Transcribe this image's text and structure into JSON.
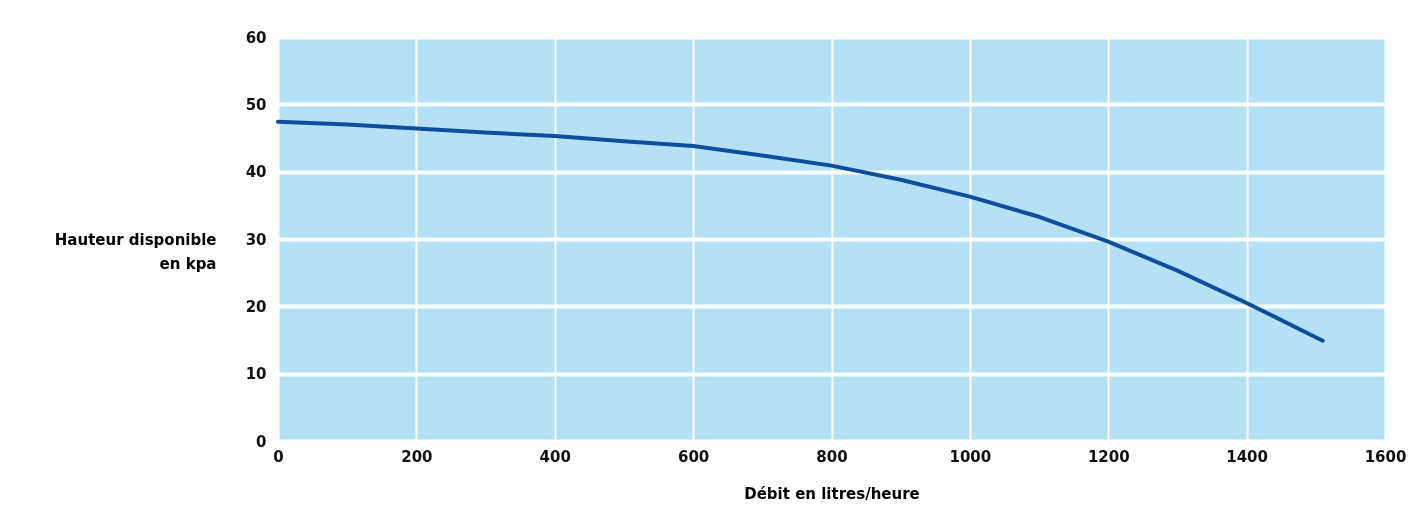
{
  "chart_data": {
    "type": "line",
    "xlabel": "Débit en litres/heure",
    "ylabel": "Hauteur disponible en kpa",
    "x": [
      0,
      100,
      200,
      300,
      400,
      500,
      600,
      700,
      800,
      900,
      1000,
      1100,
      1200,
      1300,
      1400,
      1510
    ],
    "series": [
      {
        "color": "#0d4f9c",
        "values": [
          47.4,
          47.0,
          46.4,
          45.8,
          45.3,
          44.5,
          43.8,
          42.4,
          40.9,
          38.8,
          36.3,
          33.3,
          29.6,
          25.3,
          20.5,
          14.9
        ]
      }
    ],
    "xlim": [
      0,
      1600
    ],
    "xticks": [
      0,
      200,
      400,
      600,
      800,
      1000,
      1200,
      1400,
      1600
    ],
    "ylim": [
      0,
      60
    ],
    "yticks": [
      0,
      10,
      20,
      30,
      40,
      50,
      60
    ],
    "grid": true,
    "marker": "none",
    "line_style": "solid"
  }
}
